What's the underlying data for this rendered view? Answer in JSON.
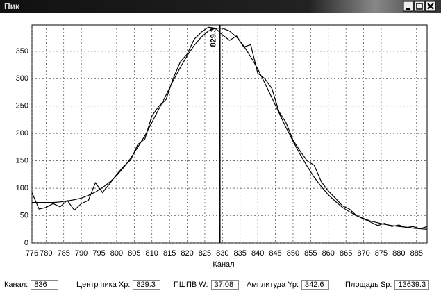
{
  "window": {
    "title": "Пик"
  },
  "chart_data": {
    "type": "line",
    "x_label": "Канал",
    "x": [
      776,
      778,
      780,
      782,
      784,
      786,
      788,
      790,
      792,
      794,
      796,
      798,
      800,
      802,
      804,
      806,
      808,
      810,
      812,
      814,
      816,
      818,
      820,
      822,
      824,
      826,
      828,
      830,
      832,
      834,
      836,
      838,
      840,
      842,
      844,
      846,
      848,
      850,
      852,
      854,
      856,
      858,
      860,
      862,
      864,
      866,
      868,
      870,
      872,
      874,
      876,
      878,
      880,
      882,
      884,
      886,
      888
    ],
    "series": [
      {
        "color": "#000000",
        "values": [
          92,
          62,
          65,
          72,
          66,
          78,
          60,
          72,
          78,
          110,
          92,
          108,
          125,
          140,
          152,
          180,
          190,
          232,
          250,
          262,
          300,
          330,
          345,
          372,
          385,
          394,
          392,
          380,
          370,
          378,
          358,
          362,
          310,
          300,
          282,
          240,
          220,
          188,
          168,
          150,
          142,
          112,
          95,
          82,
          68,
          62,
          50,
          44,
          38,
          32,
          36,
          30,
          33,
          28,
          30,
          26,
          30
        ]
      },
      {
        "color": "#000000",
        "values": [
          74,
          74,
          74,
          74,
          75,
          77,
          79,
          82,
          87,
          93,
          101,
          111,
          123,
          138,
          155,
          175,
          196,
          220,
          245,
          270,
          296,
          320,
          342,
          361,
          376,
          387,
          392,
          392,
          387,
          376,
          360,
          340,
          318,
          292,
          265,
          238,
          211,
          186,
          162,
          140,
          120,
          103,
          88,
          76,
          65,
          57,
          50,
          45,
          40,
          37,
          34,
          32,
          30,
          29,
          27,
          26,
          25
        ]
      }
    ],
    "marker_x": 829.3,
    "xlim": [
      776,
      888
    ],
    "ylim": [
      0,
      398
    ],
    "xticks": [
      776,
      780,
      785,
      790,
      795,
      800,
      805,
      810,
      815,
      820,
      825,
      830,
      835,
      840,
      845,
      850,
      855,
      860,
      865,
      870,
      875,
      880,
      885
    ],
    "yticks": [
      0,
      50,
      100,
      150,
      200,
      250,
      300,
      350
    ],
    "grid": true
  },
  "status": [
    {
      "label": "Канал:",
      "value": 836
    },
    {
      "label": "Центр пика Xp:",
      "value": 829.3
    },
    {
      "label": "ПШПВ W:",
      "value": 37.08
    },
    {
      "label": "Амплитуда Yp:",
      "value": 342.6
    },
    {
      "label": "Площадь Sp:",
      "value": 13639.3
    }
  ]
}
